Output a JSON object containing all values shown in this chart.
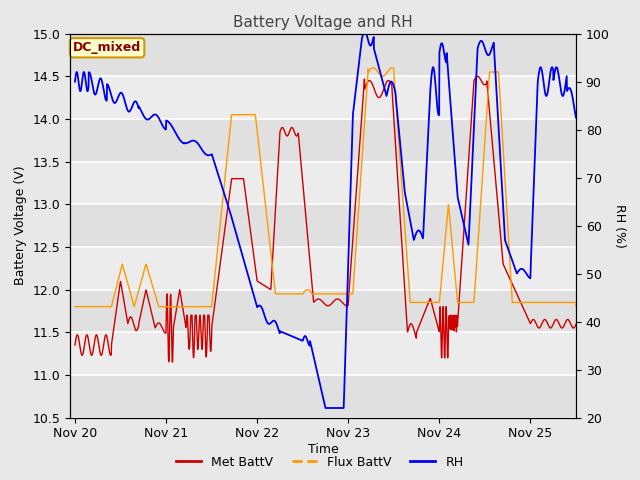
{
  "title": "Battery Voltage and RH",
  "xlabel": "Time",
  "ylabel_left": "Battery Voltage (V)",
  "ylabel_right": "RH (%)",
  "ylim_left": [
    10.5,
    15.0
  ],
  "ylim_right": [
    20,
    100
  ],
  "yticks_left": [
    10.5,
    11.0,
    11.5,
    12.0,
    12.5,
    13.0,
    13.5,
    14.0,
    14.5,
    15.0
  ],
  "yticks_right": [
    20,
    30,
    40,
    50,
    60,
    70,
    80,
    90,
    100
  ],
  "xtick_labels": [
    "Nov 20",
    "Nov 21",
    "Nov 22",
    "Nov 23",
    "Nov 24",
    "Nov 25"
  ],
  "color_met": "#cc0000",
  "color_flux": "#ff9900",
  "color_rh": "#0000ee",
  "annotation_text": "DC_mixed",
  "annotation_color": "#8b0000",
  "annotation_bg": "#ffffcc",
  "annotation_border": "#cc9900",
  "background_color": "#e8e8e8",
  "plot_bg_light": "#f0f0f0",
  "plot_bg_dark": "#d8d8d8",
  "grid_color": "#ffffff",
  "title_color": "#444444",
  "legend_labels": [
    "Met BattV",
    "Flux BattV",
    "RH"
  ]
}
